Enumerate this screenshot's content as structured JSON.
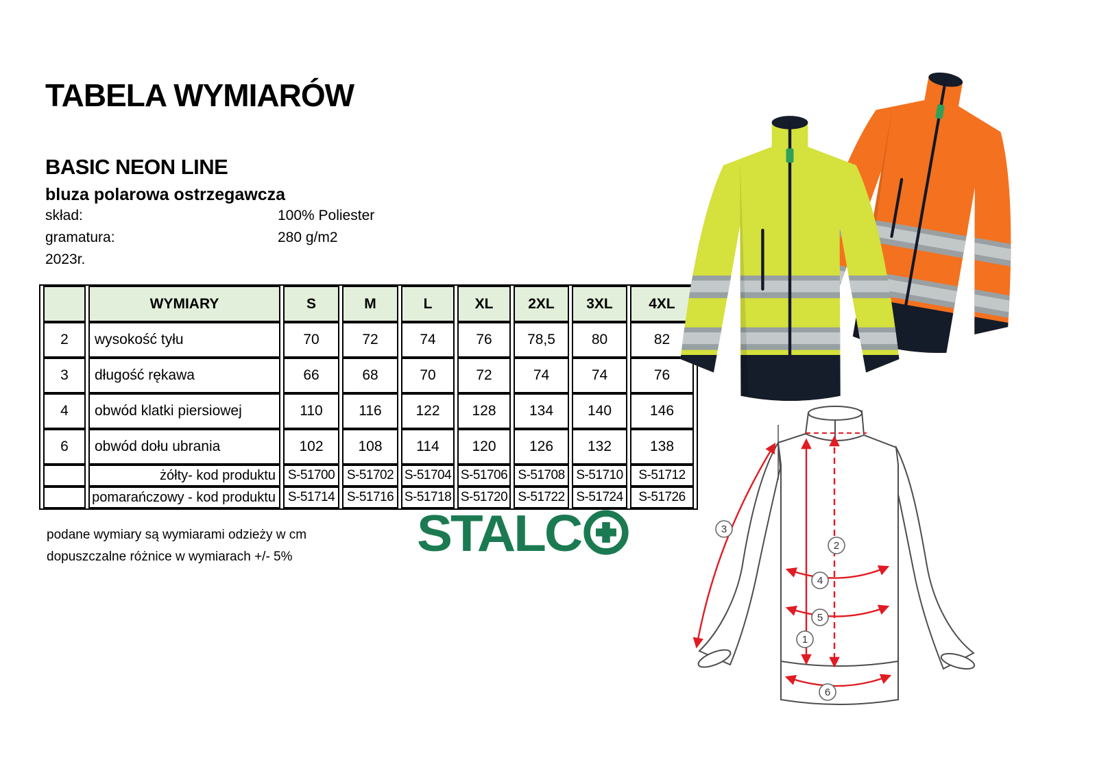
{
  "document": {
    "title": "TABELA WYMIARÓW"
  },
  "product": {
    "line": "BASIC NEON LINE",
    "name": "bluza polarowa ostrzegawcza",
    "specs": [
      {
        "label": "skład:",
        "value": "100% Poliester"
      },
      {
        "label": "gramatura:",
        "value": "280 g/m2"
      },
      {
        "label": "2023r.",
        "value": ""
      }
    ]
  },
  "size_table": {
    "columns": [
      "",
      "WYMIARY",
      "S",
      "M",
      "L",
      "XL",
      "2XL",
      "3XL",
      "4XL"
    ],
    "rows": [
      {
        "no": "2",
        "label": "wysokość tyłu",
        "values": [
          "70",
          "72",
          "74",
          "76",
          "78,5",
          "80",
          "82"
        ]
      },
      {
        "no": "3",
        "label": "długość rękawa",
        "values": [
          "66",
          "68",
          "70",
          "72",
          "74",
          "74",
          "76"
        ]
      },
      {
        "no": "4",
        "label": "obwód klatki piersiowej",
        "values": [
          "110",
          "116",
          "122",
          "128",
          "134",
          "140",
          "146"
        ]
      },
      {
        "no": "6",
        "label": "obwód dołu ubrania",
        "values": [
          "102",
          "108",
          "114",
          "120",
          "126",
          "132",
          "138"
        ]
      }
    ],
    "code_rows": [
      {
        "label": "żółty- kod produktu",
        "values": [
          "S-51700",
          "S-51702",
          "S-51704",
          "S-51706",
          "S-51708",
          "S-51710",
          "S-51712"
        ]
      },
      {
        "label": "pomarańczowy - kod produktu",
        "values": [
          "S-51714",
          "S-51716",
          "S-51718",
          "S-51720",
          "S-51722",
          "S-51724",
          "S-51726"
        ]
      }
    ]
  },
  "notes": [
    "podane wymiary są wymiarami odzieży w cm",
    "dopuszczalne różnice w wymiarach +/- 5%"
  ],
  "brand": {
    "name": "STALCO",
    "wordmark": "STALC"
  },
  "diagram": {
    "labels": [
      "1",
      "2",
      "3",
      "4",
      "5",
      "6"
    ]
  },
  "colors": {
    "table_header_bg": "#e2efda",
    "brand_green": "#1b7a52",
    "hivis_yellow": "#d5e13c",
    "hivis_orange": "#f4711f",
    "navy": "#151c2a",
    "reflective_gray": "#979b9d",
    "arrow_red": "#e11b22",
    "outline_gray": "#4d4d4d"
  }
}
